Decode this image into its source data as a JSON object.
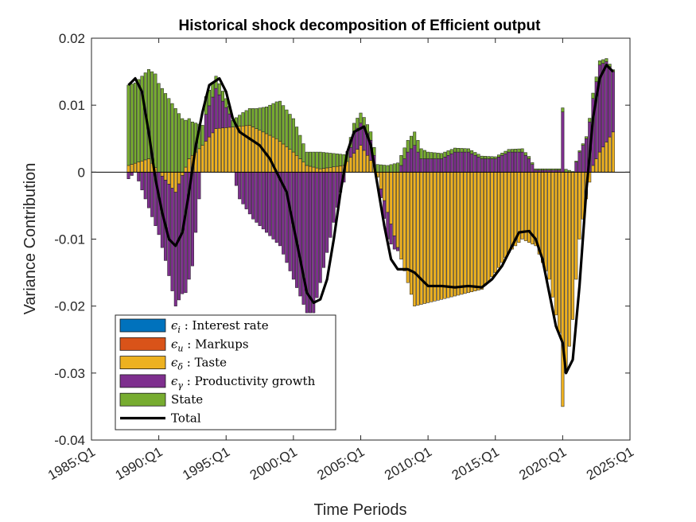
{
  "chart_data": {
    "type": "bar",
    "stacked": true,
    "title": "Historical shock decomposition of Efficient output",
    "xlabel": "Time Periods",
    "ylabel": "Variance Contribution",
    "ylim": [
      -0.04,
      0.02
    ],
    "yticks": [
      -0.04,
      -0.03,
      -0.02,
      -0.01,
      0,
      0.01,
      0.02
    ],
    "ytick_labels": [
      "-0.04",
      "-0.03",
      "-0.02",
      "-0.01",
      "0",
      "0.01",
      "0.02"
    ],
    "xlim_years": [
      1985.0,
      2025.0
    ],
    "xtick_years": [
      1985,
      1990,
      1995,
      2000,
      2005,
      2010,
      2015,
      2020,
      2025
    ],
    "xtick_labels": [
      "1985:Q1",
      "1990:Q1",
      "1995:Q1",
      "2000:Q1",
      "2005:Q1",
      "2010:Q1",
      "2015:Q1",
      "2020:Q1",
      "2025:Q1"
    ],
    "grid": false,
    "legend_position": "bottom-left",
    "series_colors": {
      "Interest rate": "#0072BD",
      "Markups": "#D95319",
      "Taste": "#EDB120",
      "Productivity growth": "#7E2F8E",
      "State": "#77AC30",
      "Total": "#000000"
    },
    "legend": [
      {
        "sym": "ϵ",
        "sub": "i",
        "text": " : Interest rate",
        "color": "#0072BD",
        "kind": "patch"
      },
      {
        "sym": "ϵ",
        "sub": "u",
        "text": " : Markups",
        "color": "#D95319",
        "kind": "patch"
      },
      {
        "sym": "ϵ",
        "sub": "δ",
        "text": " : Taste",
        "color": "#EDB120",
        "kind": "patch"
      },
      {
        "sym": "ϵ",
        "sub": "γ",
        "text": " : Productivity growth",
        "color": "#7E2F8E",
        "kind": "patch"
      },
      {
        "sym": "",
        "sub": "",
        "text": "State",
        "color": "#77AC30",
        "kind": "patch"
      },
      {
        "sym": "",
        "sub": "",
        "text": "Total",
        "color": "#000000",
        "kind": "line"
      }
    ],
    "periods": {
      "start": "1987:Q4",
      "end": "2023:Q4",
      "quarters": [
        "1987:Q4",
        "1988:Q1",
        "1988:Q2",
        "1988:Q3",
        "1988:Q4",
        "1989:Q1",
        "1989:Q2",
        "1989:Q3",
        "1989:Q4",
        "1990:Q1",
        "1990:Q2",
        "1990:Q3",
        "1990:Q4",
        "1991:Q1",
        "1991:Q2",
        "1991:Q3",
        "1991:Q4",
        "1992:Q1",
        "1992:Q2",
        "1992:Q3",
        "1992:Q4",
        "1993:Q1",
        "1993:Q2",
        "1993:Q3",
        "1993:Q4",
        "1994:Q1",
        "1994:Q2",
        "1994:Q3",
        "1994:Q4",
        "1995:Q1",
        "1995:Q2",
        "1995:Q3",
        "1995:Q4",
        "1996:Q1",
        "1996:Q2",
        "1996:Q3",
        "1996:Q4",
        "1997:Q1",
        "1997:Q2",
        "1997:Q3",
        "1997:Q4",
        "1998:Q1",
        "1998:Q2",
        "1998:Q3",
        "1998:Q4",
        "1999:Q1",
        "1999:Q2",
        "1999:Q3",
        "1999:Q4",
        "2000:Q1",
        "2000:Q2",
        "2000:Q3",
        "2000:Q4",
        "2001:Q1",
        "2001:Q2",
        "2001:Q3",
        "2001:Q4",
        "2002:Q1",
        "2002:Q2",
        "2002:Q3",
        "2002:Q4",
        "2003:Q1",
        "2003:Q2",
        "2003:Q3",
        "2003:Q4",
        "2004:Q1",
        "2004:Q2",
        "2004:Q3",
        "2004:Q4",
        "2005:Q1",
        "2005:Q2",
        "2005:Q3",
        "2005:Q4",
        "2006:Q1",
        "2006:Q2",
        "2006:Q3",
        "2006:Q4",
        "2007:Q1",
        "2007:Q2",
        "2007:Q3",
        "2007:Q4",
        "2008:Q1",
        "2008:Q2",
        "2008:Q3",
        "2008:Q4",
        "2009:Q1",
        "2009:Q2",
        "2009:Q3",
        "2009:Q4",
        "2010:Q1",
        "2010:Q2",
        "2010:Q3",
        "2010:Q4",
        "2011:Q1",
        "2011:Q2",
        "2011:Q3",
        "2011:Q4",
        "2012:Q1",
        "2012:Q2",
        "2012:Q3",
        "2012:Q4",
        "2013:Q1",
        "2013:Q2",
        "2013:Q3",
        "2013:Q4",
        "2014:Q1",
        "2014:Q2",
        "2014:Q3",
        "2014:Q4",
        "2015:Q1",
        "2015:Q2",
        "2015:Q3",
        "2015:Q4",
        "2016:Q1",
        "2016:Q2",
        "2016:Q3",
        "2016:Q4",
        "2017:Q1",
        "2017:Q2",
        "2017:Q3",
        "2017:Q4",
        "2018:Q1",
        "2018:Q2",
        "2018:Q3",
        "2018:Q4",
        "2019:Q1",
        "2019:Q2",
        "2019:Q3",
        "2019:Q4",
        "2020:Q1",
        "2020:Q2",
        "2020:Q3",
        "2020:Q4",
        "2021:Q1",
        "2021:Q2",
        "2021:Q3",
        "2021:Q4",
        "2022:Q1",
        "2022:Q2",
        "2022:Q3",
        "2022:Q4",
        "2023:Q1",
        "2023:Q2",
        "2023:Q3",
        "2023:Q4"
      ]
    },
    "series_keypoints": {
      "Taste": [
        [
          "1987:Q4",
          0.001
        ],
        [
          "1989:Q2",
          0.002
        ],
        [
          "1990:Q1",
          0.0
        ],
        [
          "1991:Q2",
          -0.003
        ],
        [
          "1992:Q2",
          0.002
        ],
        [
          "1993:Q2",
          0.004
        ],
        [
          "1994:Q2",
          0.0065
        ],
        [
          "1996:Q4",
          0.007
        ],
        [
          "1998:Q4",
          0.005
        ],
        [
          "2000:Q1",
          0.003
        ],
        [
          "2001:Q1",
          0.001
        ],
        [
          "2002:Q1",
          0.0005
        ],
        [
          "2003:Q4",
          0.001
        ],
        [
          "2005:Q1",
          0.004
        ],
        [
          "2006:Q1",
          0.001
        ],
        [
          "2007:Q1",
          -0.006
        ],
        [
          "2008:Q1",
          -0.013
        ],
        [
          "2009:Q1",
          -0.02
        ],
        [
          "2011:Q1",
          -0.019
        ],
        [
          "2013:Q1",
          -0.018
        ],
        [
          "2014:Q1",
          -0.0175
        ],
        [
          "2015:Q1",
          -0.015
        ],
        [
          "2016:Q1",
          -0.012
        ],
        [
          "2017:Q1",
          -0.01
        ],
        [
          "2018:Q1",
          -0.011
        ],
        [
          "2019:Q1",
          -0.016
        ],
        [
          "2019:Q4",
          -0.024
        ],
        [
          "2020:Q1",
          -0.035
        ],
        [
          "2020:Q2",
          -0.03
        ],
        [
          "2020:Q4",
          -0.022
        ],
        [
          "2021:Q2",
          -0.01
        ],
        [
          "2021:Q4",
          -0.004
        ],
        [
          "2022:Q2",
          0.001
        ],
        [
          "2022:Q4",
          0.003
        ],
        [
          "2023:Q4",
          0.006
        ]
      ],
      "Productivity growth": [
        [
          "1987:Q4",
          -0.001
        ],
        [
          "1988:Q2",
          0.0
        ],
        [
          "1989:Q1",
          -0.004
        ],
        [
          "1989:Q4",
          -0.008
        ],
        [
          "1990:Q3",
          -0.012
        ],
        [
          "1991:Q2",
          -0.017
        ],
        [
          "1992:Q1",
          -0.018
        ],
        [
          "1992:Q3",
          -0.014
        ],
        [
          "1993:Q1",
          -0.004
        ],
        [
          "1993:Q3",
          0.004
        ],
        [
          "1994:Q2",
          0.006
        ],
        [
          "1995:Q2",
          0.002
        ],
        [
          "1996:Q1",
          -0.004
        ],
        [
          "1997:Q1",
          -0.007
        ],
        [
          "1998:Q1",
          -0.009
        ],
        [
          "1999:Q1",
          -0.011
        ],
        [
          "2000:Q1",
          -0.016
        ],
        [
          "2001:Q1",
          -0.021
        ],
        [
          "2001:Q3",
          -0.021
        ],
        [
          "2002:Q3",
          -0.012
        ],
        [
          "2003:Q3",
          -0.003
        ],
        [
          "2004:Q3",
          0.003
        ],
        [
          "2005:Q2",
          0.0035
        ],
        [
          "2005:Q4",
          0.003
        ],
        [
          "2006:Q2",
          0.0
        ],
        [
          "2007:Q1",
          -0.004
        ],
        [
          "2007:Q3",
          -0.002
        ],
        [
          "2008:Q1",
          0.001
        ],
        [
          "2008:Q3",
          0.003
        ],
        [
          "2009:Q1",
          0.004
        ],
        [
          "2009:Q3",
          0.002
        ],
        [
          "2010:Q1",
          0.002
        ],
        [
          "2011:Q1",
          0.002
        ],
        [
          "2012:Q1",
          0.003
        ],
        [
          "2013:Q1",
          0.003
        ],
        [
          "2014:Q1",
          0.002
        ],
        [
          "2015:Q1",
          0.002
        ],
        [
          "2016:Q1",
          0.003
        ],
        [
          "2017:Q1",
          0.003
        ],
        [
          "2017:Q3",
          0.002
        ],
        [
          "2018:Q1",
          0.0003
        ],
        [
          "2019:Q4",
          0.0003
        ],
        [
          "2020:Q1",
          0.009
        ],
        [
          "2020:Q2",
          0.0
        ],
        [
          "2020:Q4",
          0.0
        ],
        [
          "2021:Q2",
          0.003
        ],
        [
          "2021:Q4",
          0.005
        ],
        [
          "2022:Q2",
          0.01
        ],
        [
          "2022:Q4",
          0.013
        ],
        [
          "2023:Q2",
          0.012
        ],
        [
          "2023:Q4",
          0.009
        ]
      ],
      "State": [
        [
          "1987:Q4",
          0.012
        ],
        [
          "1988:Q2",
          0.012
        ],
        [
          "1989:Q1",
          0.013
        ],
        [
          "1989:Q4",
          0.014
        ],
        [
          "1990:Q4",
          0.011
        ],
        [
          "1991:Q4",
          0.008
        ],
        [
          "1992:Q3",
          0.005
        ],
        [
          "1993:Q2",
          0.003
        ],
        [
          "1994:Q1",
          0.002
        ],
        [
          "1994:Q4",
          0.0015
        ],
        [
          "1995:Q3",
          0.001
        ],
        [
          "1996:Q2",
          0.002
        ],
        [
          "1997:Q2",
          0.003
        ],
        [
          "1998:Q1",
          0.004
        ],
        [
          "1999:Q1",
          0.006
        ],
        [
          "2000:Q1",
          0.005
        ],
        [
          "2001:Q1",
          0.002
        ],
        [
          "2002:Q1",
          0.0025
        ],
        [
          "2003:Q1",
          0.002
        ],
        [
          "2004:Q1",
          0.0015
        ],
        [
          "2005:Q1",
          0.0015
        ],
        [
          "2006:Q1",
          0.0012
        ],
        [
          "2007:Q1",
          0.001
        ],
        [
          "2008:Q1",
          0.0015
        ],
        [
          "2009:Q1",
          0.002
        ],
        [
          "2010:Q1",
          0.001
        ],
        [
          "2011:Q1",
          0.0008
        ],
        [
          "2012:Q1",
          0.0006
        ],
        [
          "2013:Q1",
          0.0005
        ],
        [
          "2014:Q1",
          0.0004
        ],
        [
          "2015:Q1",
          0.0003
        ],
        [
          "2016:Q1",
          0.0004
        ],
        [
          "2017:Q1",
          0.0005
        ],
        [
          "2018:Q1",
          0.0002
        ],
        [
          "2019:Q4",
          0.0002
        ],
        [
          "2020:Q1",
          0.0006
        ],
        [
          "2020:Q4",
          0.0001
        ],
        [
          "2021:Q4",
          0.0003
        ],
        [
          "2022:Q2",
          0.0008
        ],
        [
          "2023:Q4",
          0.0003
        ]
      ],
      "Interest rate": [
        [
          "1987:Q4",
          0.0
        ],
        [
          "2023:Q4",
          0.0
        ]
      ],
      "Markups": [
        [
          "1987:Q4",
          0.0
        ],
        [
          "2023:Q4",
          0.0
        ]
      ]
    },
    "total_keypoints": [
      [
        "1987:Q4",
        0.013
      ],
      [
        "1988:Q2",
        0.014
      ],
      [
        "1988:Q4",
        0.012
      ],
      [
        "1989:Q2",
        0.006
      ],
      [
        "1989:Q4",
        -0.001
      ],
      [
        "1990:Q2",
        -0.006
      ],
      [
        "1990:Q4",
        -0.01
      ],
      [
        "1991:Q2",
        -0.011
      ],
      [
        "1991:Q4",
        -0.009
      ],
      [
        "1992:Q2",
        -0.003
      ],
      [
        "1992:Q4",
        0.004
      ],
      [
        "1993:Q2",
        0.009
      ],
      [
        "1993:Q4",
        0.013
      ],
      [
        "1994:Q3",
        0.014
      ],
      [
        "1995:Q1",
        0.012
      ],
      [
        "1995:Q3",
        0.008
      ],
      [
        "1996:Q1",
        0.006
      ],
      [
        "1996:Q4",
        0.005
      ],
      [
        "1997:Q3",
        0.004
      ],
      [
        "1998:Q2",
        0.002
      ],
      [
        "1999:Q1",
        -0.001
      ],
      [
        "1999:Q3",
        -0.003
      ],
      [
        "2000:Q1",
        -0.008
      ],
      [
        "2000:Q3",
        -0.013
      ],
      [
        "2001:Q1",
        -0.018
      ],
      [
        "2001:Q3",
        -0.0195
      ],
      [
        "2002:Q1",
        -0.019
      ],
      [
        "2002:Q3",
        -0.016
      ],
      [
        "2003:Q1",
        -0.01
      ],
      [
        "2003:Q3",
        -0.003
      ],
      [
        "2004:Q1",
        0.003
      ],
      [
        "2004:Q3",
        0.006
      ],
      [
        "2005:Q2",
        0.0068
      ],
      [
        "2005:Q4",
        0.004
      ],
      [
        "2006:Q2",
        -0.002
      ],
      [
        "2006:Q4",
        -0.008
      ],
      [
        "2007:Q2",
        -0.013
      ],
      [
        "2007:Q4",
        -0.0145
      ],
      [
        "2008:Q3",
        -0.0145
      ],
      [
        "2009:Q1",
        -0.015
      ],
      [
        "2009:Q3",
        -0.016
      ],
      [
        "2010:Q1",
        -0.017
      ],
      [
        "2011:Q1",
        -0.017
      ],
      [
        "2012:Q1",
        -0.0172
      ],
      [
        "2013:Q1",
        -0.017
      ],
      [
        "2014:Q1",
        -0.0172
      ],
      [
        "2014:Q4",
        -0.016
      ],
      [
        "2015:Q3",
        -0.014
      ],
      [
        "2016:Q2",
        -0.011
      ],
      [
        "2016:Q4",
        -0.009
      ],
      [
        "2017:Q3",
        -0.0088
      ],
      [
        "2018:Q1",
        -0.01
      ],
      [
        "2018:Q3",
        -0.013
      ],
      [
        "2019:Q1",
        -0.018
      ],
      [
        "2019:Q3",
        -0.023
      ],
      [
        "2020:Q1",
        -0.0255
      ],
      [
        "2020:Q2",
        -0.03
      ],
      [
        "2020:Q4",
        -0.028
      ],
      [
        "2021:Q2",
        -0.017
      ],
      [
        "2021:Q4",
        -0.003
      ],
      [
        "2022:Q2",
        0.008
      ],
      [
        "2022:Q4",
        0.014
      ],
      [
        "2023:Q2",
        0.016
      ],
      [
        "2023:Q4",
        0.015
      ]
    ]
  }
}
